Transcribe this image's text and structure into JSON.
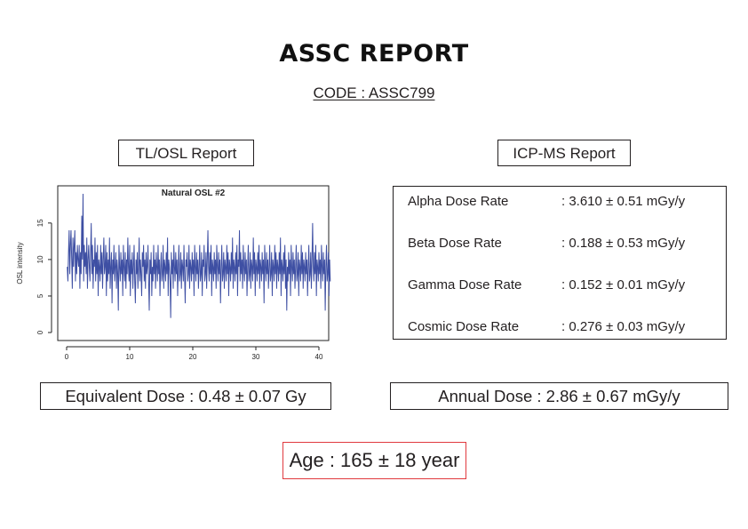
{
  "report": {
    "title": "ASSC REPORT",
    "code": "CODE : ASSC799"
  },
  "tl_osl": {
    "heading": "TL/OSL Report",
    "equivalent_dose": "Equivalent Dose : 0.48 ± 0.07 Gy"
  },
  "icp_ms": {
    "heading": "ICP-MS Report",
    "rows": [
      {
        "label": "Alpha Dose Rate",
        "value": ": 3.610 ± 0.51 mGy/y"
      },
      {
        "label": "Beta Dose Rate",
        "value": ": 0.188 ± 0.53 mGy/y"
      },
      {
        "label": "Gamma Dose Rate",
        "value": ": 0.152 ± 0.01 mGy/y"
      },
      {
        "label": "Cosmic Dose Rate",
        "value": ": 0.276 ± 0.03 mGy/y"
      }
    ],
    "annual_dose": "Annual Dose : 2.86 ± 0.67 mGy/y"
  },
  "age": "Age : 165 ± 18 year",
  "chart_data": {
    "type": "line",
    "title": "Natural OSL #2",
    "xlabel": "",
    "ylabel": "OSL intensity",
    "xlim": [
      0,
      40
    ],
    "ylim": [
      0,
      19
    ],
    "xticks": [
      0,
      10,
      20,
      30,
      40
    ],
    "yticks": [
      0,
      5,
      10,
      15
    ],
    "grid": false,
    "line_color": "#3e4fa3",
    "series": [
      {
        "x_start": 0.1,
        "x_step": 0.1,
        "values": [
          9,
          7,
          11,
          14,
          8,
          12,
          14,
          10,
          6,
          13,
          9,
          12,
          14,
          7,
          11,
          8,
          12,
          10,
          9,
          12,
          6,
          11,
          8,
          16,
          10,
          19,
          7,
          12,
          9,
          11,
          8,
          13,
          6,
          10,
          12,
          9,
          7,
          11,
          15,
          8,
          12,
          6,
          10,
          9,
          13,
          7,
          11,
          8,
          12,
          5,
          10,
          9,
          7,
          12,
          8,
          11,
          6,
          10,
          13,
          8,
          9,
          12,
          5,
          11,
          7,
          10,
          8,
          13,
          6,
          9,
          11,
          4,
          10,
          8,
          12,
          7,
          9,
          11,
          6,
          10,
          8,
          3,
          12,
          9,
          7,
          11,
          8,
          10,
          5,
          12,
          9,
          7,
          11,
          6,
          10,
          8,
          13,
          9,
          7,
          12,
          5,
          10,
          8,
          11,
          6,
          9,
          12,
          7,
          4,
          10,
          8,
          11,
          6,
          9,
          13,
          7,
          10,
          8,
          5,
          11,
          9,
          12,
          7,
          10,
          6,
          11,
          8,
          9,
          12,
          7,
          3,
          10,
          8,
          11,
          5,
          9,
          7,
          12,
          8,
          10,
          6,
          11,
          9,
          7,
          12,
          8,
          10,
          5,
          9,
          11,
          7,
          8,
          12,
          6,
          10,
          9,
          7,
          11,
          8,
          13,
          5,
          10,
          9,
          7,
          2,
          11,
          8,
          10,
          6,
          12,
          9,
          7,
          11,
          8,
          10,
          5,
          9,
          12,
          7,
          8,
          11,
          6,
          10,
          9,
          7,
          12,
          8,
          4,
          10,
          9,
          11,
          7,
          8,
          12,
          6,
          10,
          9,
          7,
          11,
          8,
          10,
          5,
          12,
          9,
          7,
          11,
          8,
          10,
          6,
          9,
          12,
          7,
          8,
          11,
          5,
          10,
          9,
          12,
          7,
          8,
          11,
          6,
          10,
          14,
          9,
          7,
          11,
          8,
          12,
          5,
          10,
          9,
          7,
          11,
          8,
          10,
          6,
          12,
          9,
          7,
          11,
          8,
          10,
          4,
          9,
          12,
          7,
          8,
          11,
          6,
          10,
          9,
          7,
          12,
          8,
          11,
          5,
          10,
          9,
          7,
          11,
          8,
          13,
          6,
          10,
          9,
          7,
          11,
          8,
          12,
          5,
          10,
          9,
          14,
          7,
          11,
          8,
          10,
          6,
          12,
          9,
          7,
          11,
          8,
          10,
          5,
          9,
          12,
          7,
          8,
          11,
          6,
          10,
          9,
          7,
          13,
          8,
          11,
          5,
          10,
          9,
          7,
          11,
          8,
          12,
          6,
          10,
          9,
          7,
          11,
          8,
          10,
          4,
          12,
          9,
          7,
          11,
          8,
          10,
          6,
          9,
          12,
          7,
          8,
          11,
          5,
          10,
          9,
          7,
          12,
          8,
          11,
          6,
          10,
          9,
          7,
          11,
          8,
          13,
          5,
          10,
          9,
          7,
          11,
          8,
          12,
          6,
          10,
          3,
          9,
          7,
          11,
          8,
          10,
          5,
          12,
          9,
          7,
          11,
          8,
          10,
          6,
          9,
          12,
          7,
          8,
          11,
          5,
          10,
          9,
          7,
          12,
          8,
          11,
          6,
          10,
          9,
          7,
          11,
          8,
          10,
          5,
          9,
          12,
          7,
          8,
          11,
          6,
          10,
          15,
          9,
          7,
          11,
          8,
          12,
          5,
          10,
          9,
          7,
          11,
          8,
          10,
          6,
          12,
          9,
          7,
          11,
          8,
          10,
          3,
          9,
          12,
          7,
          8,
          11,
          5,
          10,
          7
        ]
      }
    ]
  }
}
